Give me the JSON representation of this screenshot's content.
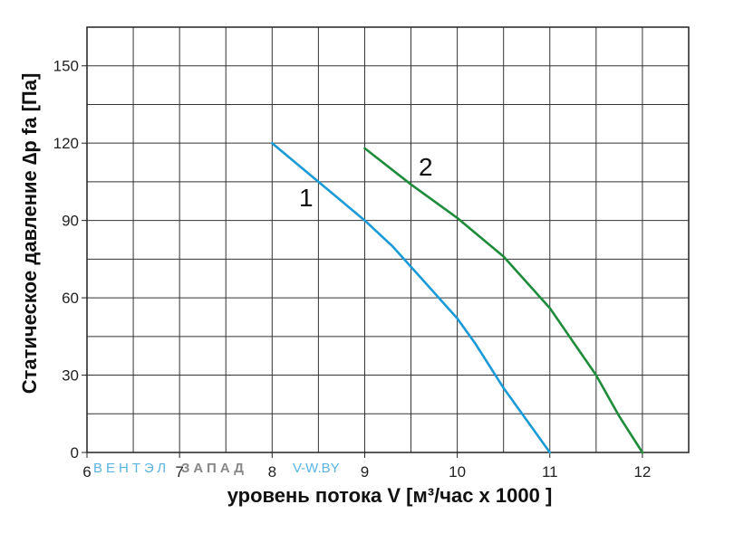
{
  "chart_data": {
    "type": "line",
    "title": "",
    "xlabel": "уровень потока  V [м³/час x 1000 ]",
    "ylabel": "Статическое давление  ∆p fa [Па]",
    "xlim": [
      6,
      12.5
    ],
    "ylim": [
      0,
      165
    ],
    "x_ticks": [
      6,
      7,
      8,
      9,
      10,
      11,
      12
    ],
    "y_ticks": [
      0,
      30,
      60,
      90,
      120,
      150
    ],
    "grid": true,
    "series": [
      {
        "name": "1",
        "color": "#1a9ad6",
        "x": [
          8.0,
          8.5,
          9.0,
          9.3,
          9.6,
          10.0,
          10.2,
          10.5,
          11.0
        ],
        "y": [
          120,
          105,
          90,
          80,
          68,
          52,
          42,
          25,
          0
        ]
      },
      {
        "name": "2",
        "color": "#1e8c3a",
        "x": [
          9.0,
          9.5,
          10.0,
          10.5,
          11.0,
          11.5,
          11.75,
          12.0
        ],
        "y": [
          118,
          104,
          91,
          76,
          56,
          30,
          14,
          0
        ]
      }
    ]
  },
  "watermark": {
    "part1": "ВЕНТЭЛ",
    "part2": "ЗАПАД",
    "part3": "V-W.BY",
    "color1": "#5ab4e0",
    "color2": "#888888"
  }
}
